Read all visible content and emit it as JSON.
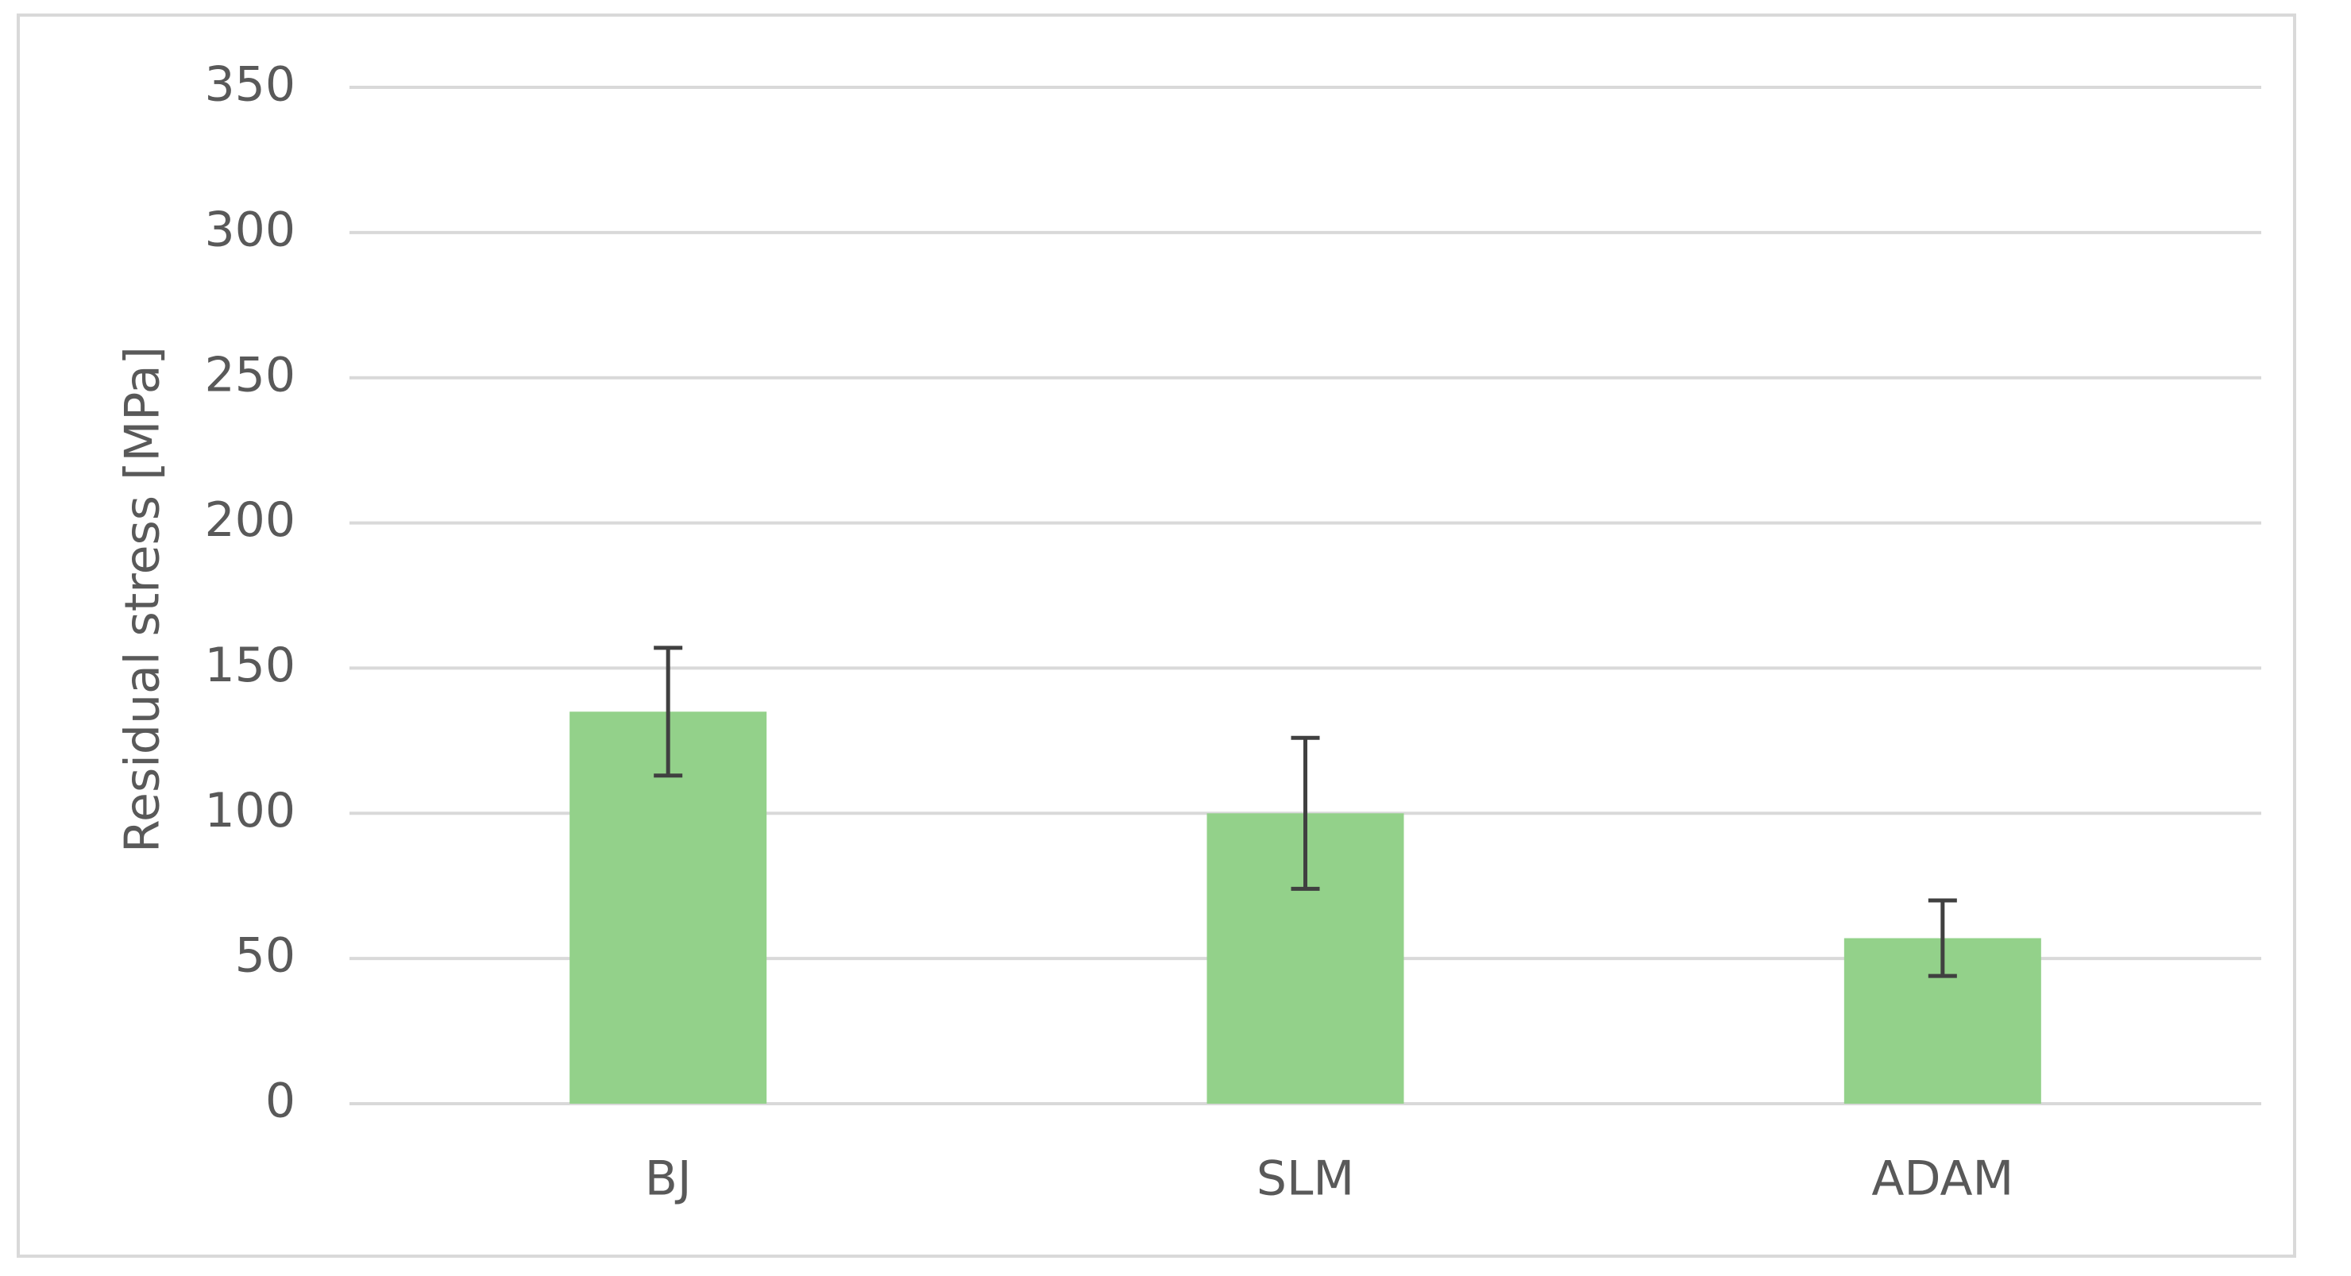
{
  "chart_data": {
    "type": "bar",
    "y_axis_label": "Residual stress [MPa]",
    "categories": [
      "BJ",
      "SLM",
      "ADAM"
    ],
    "values": [
      135,
      100,
      57
    ],
    "errors": [
      22,
      26,
      13
    ],
    "color": "#93d18a",
    "error_color": "#404040",
    "ylim": [
      0,
      350
    ],
    "yticks": [
      0,
      50,
      100,
      150,
      200,
      250,
      300,
      350
    ],
    "grid": true
  }
}
